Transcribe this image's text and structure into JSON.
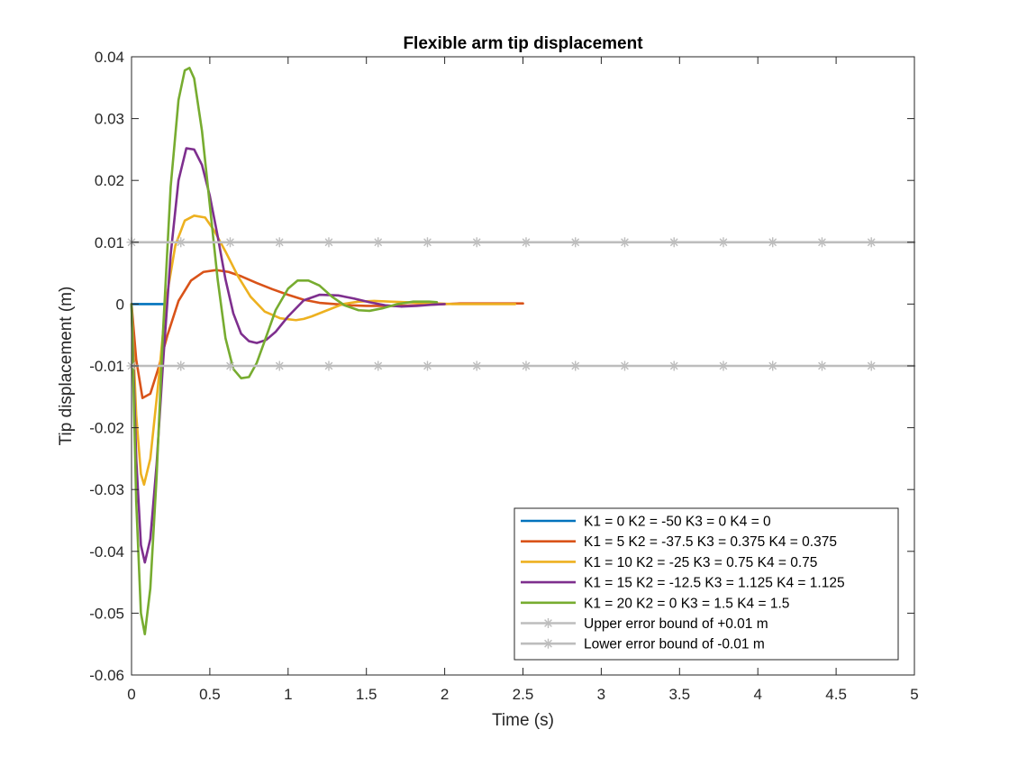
{
  "chart_data": {
    "type": "line",
    "title": "Flexible arm tip displacement",
    "xlabel": "Time (s)",
    "ylabel": "Tip displacement (m)",
    "xlim": [
      0,
      5
    ],
    "ylim": [
      -0.06,
      0.04
    ],
    "xticks": [
      0,
      0.5,
      1,
      1.5,
      2,
      2.5,
      3,
      3.5,
      4,
      4.5,
      5
    ],
    "xtick_labels": [
      "0",
      "0.5",
      "1",
      "1.5",
      "2",
      "2.5",
      "3",
      "3.5",
      "4",
      "4.5",
      "5"
    ],
    "yticks": [
      0.04,
      0.03,
      0.02,
      0.01,
      0,
      -0.01,
      -0.02,
      -0.03,
      -0.04,
      -0.05,
      -0.06
    ],
    "ytick_labels": [
      "0.04",
      "0.03",
      "0.02",
      "0.01",
      "0",
      "-0.01",
      "-0.02",
      "-0.03",
      "-0.04",
      "-0.05",
      "-0.06"
    ],
    "grid": false,
    "legend_position": "bottom-right",
    "series": [
      {
        "name": "K1 = 0 K2 = -50 K3 = 0 K4 = 0",
        "color": "#0072BD",
        "x": [
          0,
          0.05,
          0.1,
          0.15,
          0.2
        ],
        "y": [
          0,
          0,
          0,
          0,
          0
        ]
      },
      {
        "name": "K1 = 5 K2 = -37.5 K3 = 0.375 K4 = 0.375",
        "color": "#D95319",
        "x": [
          0,
          0.03,
          0.07,
          0.12,
          0.17,
          0.23,
          0.3,
          0.38,
          0.46,
          0.54,
          0.62,
          0.7,
          0.8,
          0.9,
          1.0,
          1.1,
          1.2,
          1.3,
          1.4,
          1.5,
          1.6,
          1.7,
          1.8,
          1.9,
          2.0,
          2.1,
          2.2,
          2.3,
          2.4,
          2.5
        ],
        "y": [
          0,
          -0.009,
          -0.0152,
          -0.0145,
          -0.0105,
          -0.005,
          0.0005,
          0.0038,
          0.0052,
          0.0055,
          0.0052,
          0.0045,
          0.0034,
          0.0024,
          0.0015,
          0.0007,
          0.0002,
          0,
          -0.0002,
          -0.0003,
          -0.0003,
          -0.0003,
          -0.0002,
          -0.0001,
          0,
          0.0001,
          0.0001,
          0.0001,
          0.0001,
          0.0001
        ]
      },
      {
        "name": "K1 = 10 K2 = -25 K3 = 0.75 K4 = 0.75",
        "color": "#EDB120",
        "x": [
          0,
          0.03,
          0.06,
          0.08,
          0.12,
          0.17,
          0.22,
          0.28,
          0.34,
          0.4,
          0.47,
          0.53,
          0.6,
          0.68,
          0.76,
          0.85,
          0.95,
          1.05,
          1.1,
          1.15,
          1.25,
          1.35,
          1.45,
          1.55,
          1.65,
          1.75,
          1.85,
          1.95,
          2.05,
          2.15,
          2.25,
          2.35,
          2.45
        ],
        "y": [
          0,
          -0.018,
          -0.0275,
          -0.0292,
          -0.025,
          -0.013,
          0.0005,
          0.0095,
          0.0135,
          0.0143,
          0.014,
          0.0118,
          0.0085,
          0.0045,
          0.0012,
          -0.0012,
          -0.0023,
          -0.0026,
          -0.0024,
          -0.002,
          -0.001,
          0,
          0.0004,
          0.0005,
          0.0004,
          0.0003,
          0.0002,
          0.0001,
          0,
          0,
          0,
          0,
          0
        ]
      },
      {
        "name": "K1 = 15 K2 = -12.5 K3 = 1.125 K4 = 1.125",
        "color": "#7E2F8E",
        "x": [
          0,
          0.03,
          0.06,
          0.085,
          0.12,
          0.16,
          0.2,
          0.25,
          0.3,
          0.35,
          0.4,
          0.45,
          0.5,
          0.55,
          0.6,
          0.65,
          0.7,
          0.75,
          0.8,
          0.86,
          0.92,
          1.0,
          1.1,
          1.2,
          1.32,
          1.42,
          1.52,
          1.62,
          1.72,
          1.82,
          1.92,
          2.0
        ],
        "y": [
          0,
          -0.025,
          -0.039,
          -0.0418,
          -0.038,
          -0.026,
          -0.01,
          0.008,
          0.02,
          0.0252,
          0.025,
          0.0225,
          0.0175,
          0.011,
          0.004,
          -0.0015,
          -0.0048,
          -0.006,
          -0.0063,
          -0.0058,
          -0.0045,
          -0.002,
          0.0006,
          0.0015,
          0.0014,
          0.0009,
          0.0003,
          -0.0002,
          -0.0004,
          -0.0003,
          -0.0001,
          0
        ]
      },
      {
        "name": "K1 = 20 K2 = 0 K3 = 1.5 K4 = 1.5",
        "color": "#77AC30",
        "x": [
          0,
          0.03,
          0.06,
          0.085,
          0.12,
          0.16,
          0.2,
          0.25,
          0.3,
          0.34,
          0.37,
          0.4,
          0.45,
          0.5,
          0.55,
          0.6,
          0.65,
          0.7,
          0.75,
          0.8,
          0.85,
          0.92,
          1.0,
          1.06,
          1.13,
          1.2,
          1.28,
          1.36,
          1.45,
          1.52,
          1.6,
          1.7,
          1.8,
          1.9,
          1.95
        ],
        "y": [
          0,
          -0.032,
          -0.05,
          -0.0534,
          -0.046,
          -0.028,
          -0.005,
          0.019,
          0.033,
          0.0378,
          0.0382,
          0.0365,
          0.028,
          0.016,
          0.004,
          -0.0055,
          -0.0105,
          -0.012,
          -0.0118,
          -0.0095,
          -0.006,
          -0.001,
          0.0025,
          0.0038,
          0.0038,
          0.003,
          0.0012,
          -0.0002,
          -0.001,
          -0.0011,
          -0.0007,
          0,
          0.0004,
          0.0004,
          0.0003
        ]
      },
      {
        "name": "Upper error bound of +0.01 m",
        "color": "#BDBDBD",
        "marker": "asterisk",
        "x": [
          0,
          5
        ],
        "y": [
          0.01,
          0.01
        ],
        "marker_x": [
          0,
          0.315,
          0.63,
          0.945,
          1.26,
          1.575,
          1.89,
          2.205,
          2.52,
          2.835,
          3.15,
          3.465,
          3.78,
          4.095,
          4.41,
          4.725
        ]
      },
      {
        "name": "Lower error bound of -0.01 m",
        "color": "#BDBDBD",
        "marker": "asterisk",
        "x": [
          0,
          5
        ],
        "y": [
          -0.01,
          -0.01
        ],
        "marker_x": [
          0,
          0.315,
          0.63,
          0.945,
          1.26,
          1.575,
          1.89,
          2.205,
          2.52,
          2.835,
          3.15,
          3.465,
          3.78,
          4.095,
          4.41,
          4.725
        ]
      }
    ]
  }
}
